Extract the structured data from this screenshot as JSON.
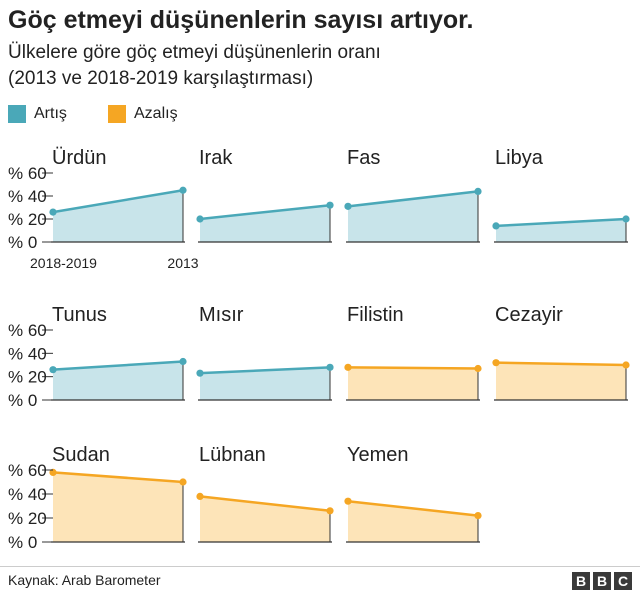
{
  "title": "Göç etmeyi düşünenlerin sayısı artıyor.",
  "subtitle_line1": "Ülkelere göre göç etmeyi düşünenlerin oranı",
  "subtitle_line2": "(2013 ve 2018-2019 karşılaştırması)",
  "legend": [
    {
      "label": "Artış",
      "color": "#4aa8b8"
    },
    {
      "label": "Azalış",
      "color": "#f5a623"
    }
  ],
  "colors": {
    "increase_line": "#4aa8b8",
    "increase_fill": "#c8e4ea",
    "decrease_line": "#f5a623",
    "decrease_fill": "#fde4b8",
    "axis": "#333333"
  },
  "source": "Kaynak: Arab Barometer",
  "logo": [
    "B",
    "B",
    "C"
  ],
  "chart_data": {
    "type": "area",
    "x": [
      "2018-2019",
      "2013"
    ],
    "y_ticks": [
      "% 0",
      "% 20",
      "% 40",
      "% 60"
    ],
    "y_tick_values": [
      0,
      20,
      40,
      60
    ],
    "ylim": [
      0,
      60
    ],
    "series": [
      {
        "name": "Ürdün",
        "trend": "increase",
        "values": [
          26,
          45
        ]
      },
      {
        "name": "Irak",
        "trend": "increase",
        "values": [
          20,
          32
        ]
      },
      {
        "name": "Fas",
        "trend": "increase",
        "values": [
          31,
          44
        ]
      },
      {
        "name": "Libya",
        "trend": "increase",
        "values": [
          14,
          20
        ]
      },
      {
        "name": "Tunus",
        "trend": "increase",
        "values": [
          26,
          33
        ]
      },
      {
        "name": "Mısır",
        "trend": "increase",
        "values": [
          23,
          28
        ]
      },
      {
        "name": "Filistin",
        "trend": "decrease",
        "values": [
          28,
          27
        ]
      },
      {
        "name": "Cezayir",
        "trend": "decrease",
        "values": [
          32,
          30
        ]
      },
      {
        "name": "Sudan",
        "trend": "decrease",
        "values": [
          58,
          50
        ]
      },
      {
        "name": "Lübnan",
        "trend": "decrease",
        "values": [
          38,
          26
        ]
      },
      {
        "name": "Yemen",
        "trend": "decrease",
        "values": [
          34,
          22
        ]
      }
    ]
  }
}
